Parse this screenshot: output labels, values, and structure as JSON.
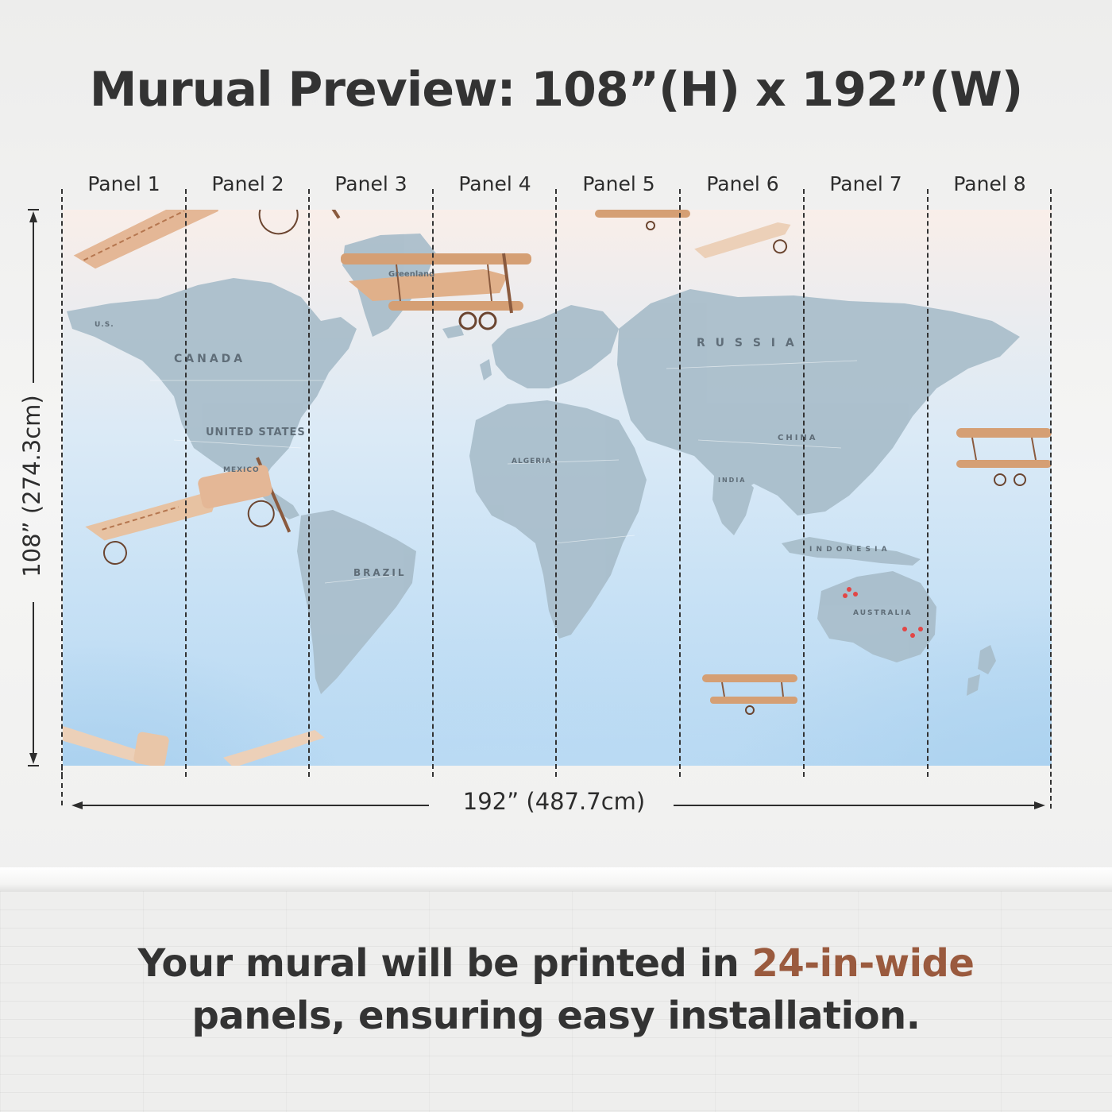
{
  "title": "Murual Preview: 108”(H) x 192”(W)",
  "panels": [
    {
      "label": "Panel 1"
    },
    {
      "label": "Panel 2"
    },
    {
      "label": "Panel 3"
    },
    {
      "label": "Panel 4"
    },
    {
      "label": "Panel 5"
    },
    {
      "label": "Panel 6"
    },
    {
      "label": "Panel 7"
    },
    {
      "label": "Panel 8"
    }
  ],
  "dimensions": {
    "height_label": "108” (274.3cm)",
    "width_label": "192” (487.7cm)"
  },
  "map_labels": {
    "canada": "CANADA",
    "united_states": "UNITED STATES",
    "mexico": "MEXICO",
    "brazil": "BRAZIL",
    "greenland": "Greenland",
    "russia": "R U S S I A",
    "china": "CHINA",
    "india": "INDIA",
    "australia": "AUSTRALIA",
    "algeria": "ALGERIA",
    "indonesia": "I N D O N E S I A",
    "us_short": "U.S."
  },
  "footer": {
    "line1_prefix": "Your mural will be printed in ",
    "line1_accent": "24-in-wide",
    "line2": "panels, ensuring easy installation."
  },
  "colors": {
    "accent": "#9a5a3e",
    "land": "#a9bfcc",
    "plane": "#d9a47c",
    "text": "#333333"
  }
}
